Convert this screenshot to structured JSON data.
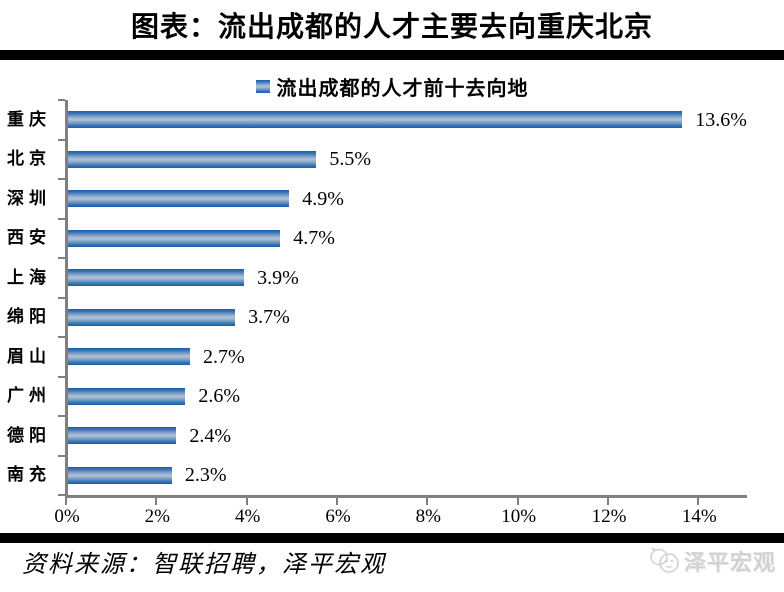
{
  "header": {
    "title": "图表：流出成都的人才主要去向重庆北京"
  },
  "chart_data": {
    "type": "bar",
    "orientation": "horizontal",
    "title": "",
    "legend": "流出成都的人才前十去向地",
    "legend_position": "top-center",
    "categories": [
      "重庆",
      "北京",
      "深圳",
      "西安",
      "上海",
      "绵阳",
      "眉山",
      "广州",
      "德阳",
      "南充"
    ],
    "values": [
      13.6,
      5.5,
      4.9,
      4.7,
      3.9,
      3.7,
      2.7,
      2.6,
      2.4,
      2.3
    ],
    "value_labels": [
      "13.6%",
      "5.5%",
      "4.9%",
      "4.7%",
      "3.9%",
      "3.7%",
      "2.7%",
      "2.6%",
      "2.4%",
      "2.3%"
    ],
    "x_tick_labels": [
      "0%",
      "2%",
      "4%",
      "6%",
      "8%",
      "10%",
      "12%",
      "14%"
    ],
    "x_tick_values": [
      0,
      2,
      4,
      6,
      8,
      10,
      12,
      14
    ],
    "xlim": [
      0,
      15.1
    ],
    "grid": false,
    "bar_color_edge": "#1e5fa8",
    "bar_color_mid": "#b4c3d6",
    "axis_color": "#808080"
  },
  "footer": {
    "source": "资料来源：智联招聘，泽平宏观",
    "watermark": "泽平宏观"
  }
}
